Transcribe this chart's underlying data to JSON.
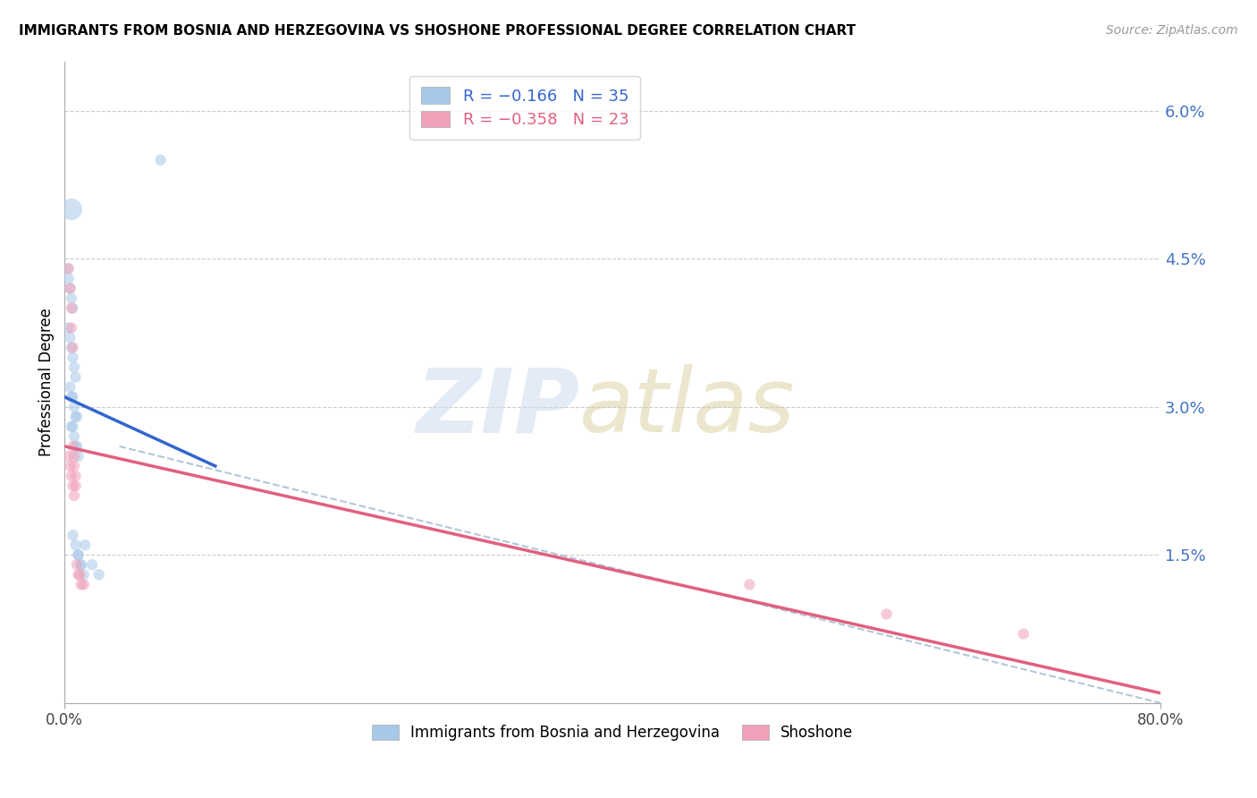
{
  "title": "IMMIGRANTS FROM BOSNIA AND HERZEGOVINA VS SHOSHONE PROFESSIONAL DEGREE CORRELATION CHART",
  "source": "Source: ZipAtlas.com",
  "ylabel": "Professional Degree",
  "ylabel_right_ticks": [
    "6.0%",
    "4.5%",
    "3.0%",
    "1.5%"
  ],
  "ylabel_right_vals": [
    0.06,
    0.045,
    0.03,
    0.015
  ],
  "legend_blue_R": "-0.166",
  "legend_blue_N": "35",
  "legend_pink_R": "-0.358",
  "legend_pink_N": "23",
  "blue_color": "#a8c8e8",
  "pink_color": "#f0a0b8",
  "blue_line_color": "#3366cc",
  "pink_line_color": "#e06080",
  "dashed_color": "#a0b8d0",
  "blue_scatter_x": [
    0.005,
    0.07,
    0.002,
    0.003,
    0.004,
    0.005,
    0.006,
    0.003,
    0.004,
    0.005,
    0.006,
    0.007,
    0.008,
    0.004,
    0.005,
    0.006,
    0.007,
    0.008,
    0.009,
    0.005,
    0.006,
    0.007,
    0.008,
    0.009,
    0.01,
    0.006,
    0.008,
    0.01,
    0.012,
    0.014,
    0.01,
    0.012,
    0.015,
    0.02,
    0.025
  ],
  "blue_scatter_y": [
    0.05,
    0.055,
    0.044,
    0.043,
    0.042,
    0.041,
    0.04,
    0.038,
    0.037,
    0.036,
    0.035,
    0.034,
    0.033,
    0.032,
    0.031,
    0.031,
    0.03,
    0.029,
    0.029,
    0.028,
    0.028,
    0.027,
    0.026,
    0.026,
    0.025,
    0.017,
    0.016,
    0.015,
    0.014,
    0.013,
    0.015,
    0.014,
    0.016,
    0.014,
    0.013
  ],
  "blue_scatter_sizes": [
    300,
    80,
    80,
    80,
    80,
    80,
    80,
    80,
    80,
    80,
    80,
    80,
    80,
    80,
    80,
    80,
    80,
    80,
    80,
    80,
    80,
    80,
    80,
    80,
    80,
    80,
    80,
    80,
    80,
    80,
    80,
    80,
    80,
    80,
    80
  ],
  "pink_scatter_x": [
    0.003,
    0.004,
    0.005,
    0.005,
    0.006,
    0.006,
    0.007,
    0.007,
    0.008,
    0.008,
    0.009,
    0.01,
    0.011,
    0.012,
    0.014,
    0.003,
    0.004,
    0.005,
    0.006,
    0.007,
    0.5,
    0.6,
    0.7
  ],
  "pink_scatter_y": [
    0.044,
    0.042,
    0.04,
    0.038,
    0.036,
    0.026,
    0.025,
    0.024,
    0.023,
    0.022,
    0.014,
    0.013,
    0.013,
    0.012,
    0.012,
    0.025,
    0.024,
    0.023,
    0.022,
    0.021,
    0.012,
    0.009,
    0.007
  ],
  "pink_scatter_sizes": [
    80,
    80,
    80,
    80,
    80,
    80,
    80,
    80,
    80,
    80,
    80,
    80,
    80,
    80,
    80,
    80,
    80,
    80,
    80,
    80,
    80,
    80,
    80
  ],
  "blue_trend_x": [
    0.0,
    0.11
  ],
  "blue_trend_y": [
    0.031,
    0.024
  ],
  "pink_trend_x": [
    0.0,
    0.8
  ],
  "pink_trend_y": [
    0.026,
    0.001
  ],
  "dashed_line_x": [
    0.04,
    0.8
  ],
  "dashed_line_y": [
    0.026,
    0.0
  ],
  "xlim": [
    0.0,
    0.8
  ],
  "ylim": [
    0.0,
    0.065
  ]
}
